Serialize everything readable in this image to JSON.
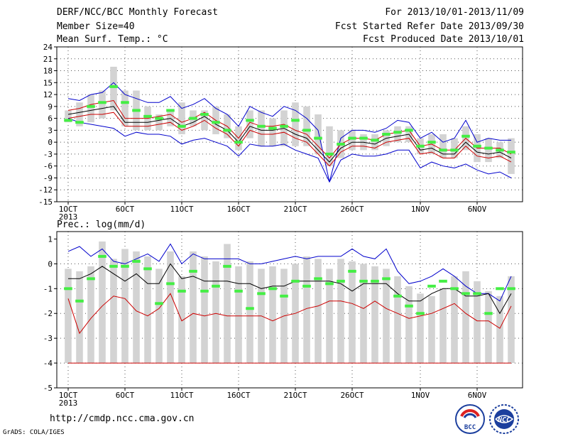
{
  "header": {
    "title": "DERF/NCC/BCC Monthly Forecast",
    "member_size": "Member Size=40",
    "temp_label": "Mean Surf. Temp.: °C",
    "for_period": "For 2013/10/01-2013/11/09",
    "fcst_started": "Fcst Started Refer Date 2013/09/30",
    "fcst_produced": "Fcst Produced Date 2013/10/01"
  },
  "footer": {
    "url": "http://cmdp.ncc.cma.gov.cn",
    "grads": "GrADS: COLA/IGES",
    "logo_bcc": "BCC",
    "logo_ncc": "NCC"
  },
  "colors": {
    "box": "#d3d3d3",
    "green": "#44ee44",
    "max": "#0000cc",
    "min": "#cc0000",
    "mean": "#000000",
    "grid": "#555555"
  },
  "chart_data": [
    {
      "type": "box-line",
      "title": "Mean Surf. Temp.: °C",
      "x_tick_labels": [
        "1OCT",
        "6OCT",
        "11OCT",
        "16OCT",
        "21OCT",
        "26OCT",
        "1NOV",
        "6NOV"
      ],
      "x_tick_days": [
        1,
        6,
        11,
        16,
        21,
        26,
        32,
        37
      ],
      "year_label": "2013",
      "ylim": [
        -15,
        24
      ],
      "y_ticks": [
        -15,
        -12,
        -9,
        -6,
        -3,
        0,
        3,
        6,
        9,
        12,
        15,
        18,
        21,
        24
      ],
      "y_tick_labels": [
        "-15",
        "-12",
        "-9",
        "-6",
        "-3",
        "0",
        "3",
        "6",
        "9",
        "12",
        "15",
        "18",
        "21",
        "24"
      ],
      "days": [
        1,
        2,
        3,
        4,
        5,
        6,
        7,
        8,
        9,
        10,
        11,
        12,
        13,
        14,
        15,
        16,
        17,
        18,
        19,
        20,
        21,
        22,
        23,
        24,
        25,
        26,
        27,
        28,
        29,
        30,
        31,
        32,
        33,
        34,
        35,
        36,
        37,
        38,
        39,
        40
      ],
      "box_low": [
        5,
        4,
        5,
        6,
        8,
        4,
        3,
        3,
        3,
        4,
        2,
        4,
        3,
        2,
        1,
        -2,
        1,
        -1,
        -1,
        -1,
        -1,
        -1,
        -3,
        -6,
        -4,
        -2,
        -2,
        -2,
        -1,
        0,
        0,
        -3,
        -3,
        -4,
        -4,
        -2,
        -5,
        -5,
        -4,
        -8
      ],
      "box_high": [
        8,
        10,
        12,
        13,
        19,
        13,
        13,
        9,
        7,
        8,
        10,
        8,
        8,
        9,
        7,
        4,
        8,
        8,
        6,
        8,
        10,
        9,
        7,
        4,
        3,
        3,
        2,
        2,
        3,
        4,
        4,
        1,
        2,
        2,
        1,
        4,
        2,
        1,
        0,
        1
      ],
      "green": [
        5.5,
        5,
        9,
        10,
        14,
        10,
        8,
        6.5,
        6,
        8,
        4,
        6,
        7,
        5,
        3,
        0,
        5.5,
        4,
        3.5,
        4,
        5.5,
        3,
        1,
        -3,
        -0.5,
        1,
        1,
        0.5,
        2,
        2.5,
        3,
        -1,
        0,
        -2,
        -2,
        1.5,
        -1,
        -1.5,
        -2,
        -2.5
      ],
      "series": [
        {
          "key": "max",
          "values": [
            11,
            10.5,
            12,
            12.5,
            15,
            12,
            11,
            10,
            10,
            11.5,
            8.5,
            9.5,
            11,
            8.5,
            7,
            4,
            9,
            7.5,
            6.5,
            9,
            8,
            6,
            3,
            -10,
            1,
            3,
            3,
            2.5,
            3.5,
            5.5,
            5,
            1,
            2.5,
            0,
            1,
            5.5,
            0,
            1,
            0.5,
            0.5
          ]
        },
        {
          "key": "upper",
          "values": [
            8,
            8.5,
            9.5,
            10,
            10.5,
            6,
            6,
            6,
            6.5,
            7,
            5,
            6,
            7.5,
            5.5,
            4,
            1,
            5,
            4,
            4,
            4.5,
            3,
            2,
            -1,
            -4,
            -0.5,
            1,
            1,
            0.5,
            2,
            2.5,
            3,
            -1,
            -0.5,
            -2,
            -2,
            1,
            -1.5,
            -1.5,
            -1.5,
            -3
          ]
        },
        {
          "key": "mean",
          "values": [
            7,
            7.5,
            8,
            8.5,
            9,
            5,
            5,
            5,
            5.5,
            6,
            4,
            5,
            6.5,
            4.5,
            3,
            0,
            4,
            3,
            3,
            3.5,
            2,
            1,
            -2,
            -5,
            -1.5,
            0,
            0,
            -0.5,
            1,
            1.5,
            2,
            -2,
            -1.5,
            -3,
            -3,
            0,
            -2.5,
            -3,
            -2.5,
            -4
          ]
        },
        {
          "key": "lower",
          "values": [
            6,
            6.5,
            7,
            7,
            7.5,
            4,
            4,
            4,
            4.5,
            5,
            3,
            4,
            5.5,
            3.5,
            2,
            -1,
            3,
            2,
            2,
            2.5,
            1,
            0,
            -3,
            -6,
            -2.5,
            -1,
            -1,
            -1.5,
            0,
            0.5,
            1,
            -3,
            -2.5,
            -4,
            -4,
            -1,
            -3.5,
            -4,
            -3.5,
            -5
          ]
        },
        {
          "key": "min",
          "values": [
            6,
            5,
            4.5,
            4,
            3.5,
            1.5,
            2.5,
            2,
            2,
            1.5,
            -0.5,
            0.5,
            1,
            0,
            -1,
            -3.5,
            -0.5,
            -1,
            -1,
            -0.5,
            -2,
            -3,
            -4,
            -10,
            -4.5,
            -3,
            -3.5,
            -3.5,
            -3,
            -2,
            -2,
            -6.5,
            -5,
            -6,
            -6.5,
            -5.5,
            -7,
            -8,
            -7.5,
            -9
          ]
        }
      ]
    },
    {
      "type": "box-line",
      "title": "Prec.: log(mm/d)",
      "x_tick_labels": [
        "1OCT",
        "6OCT",
        "11OCT",
        "16OCT",
        "21OCT",
        "26OCT",
        "1NOV",
        "6NOV"
      ],
      "x_tick_days": [
        1,
        6,
        11,
        16,
        21,
        26,
        32,
        37
      ],
      "year_label": "2013",
      "ylim": [
        -5,
        1.3
      ],
      "y_ticks": [
        -5,
        -4,
        -3,
        -2,
        -1,
        0,
        1
      ],
      "y_tick_labels": [
        "-5",
        "-4",
        "-3",
        "-2",
        "-1",
        "0",
        "1"
      ],
      "days": [
        1,
        2,
        3,
        4,
        5,
        6,
        7,
        8,
        9,
        10,
        11,
        12,
        13,
        14,
        15,
        16,
        17,
        18,
        19,
        20,
        21,
        22,
        23,
        24,
        25,
        26,
        27,
        28,
        29,
        30,
        31,
        32,
        33,
        34,
        35,
        36,
        37,
        38,
        39,
        40
      ],
      "box_low": [
        -4,
        -4,
        -4,
        -4,
        -4,
        -4,
        -4,
        -4,
        -4,
        -4,
        -4,
        -4,
        -4,
        -4,
        -4,
        -4,
        -4,
        -4,
        -4,
        -4,
        -4,
        -4,
        -4,
        -4,
        -4,
        -4,
        -4,
        -4,
        -4,
        -4,
        -4,
        -4,
        -4,
        -4,
        -4,
        -4,
        -4,
        -4,
        -4,
        -4
      ],
      "box_high": [
        -0.2,
        -0.3,
        -0.1,
        0.9,
        0.2,
        0.6,
        0.5,
        0.3,
        -0.2,
        0.5,
        -0.5,
        0.5,
        0.3,
        0.1,
        0.8,
        -0.1,
        0.1,
        -0.2,
        -0.1,
        -0.2,
        0.0,
        0.3,
        0.2,
        -0.2,
        0.2,
        0.1,
        0.0,
        -0.1,
        -0.2,
        -0.5,
        -0.9,
        -1.2,
        -1.3,
        -1.0,
        -0.5,
        -0.3,
        -0.7,
        -1.1,
        -1.3,
        -0.5
      ],
      "green": [
        -1.0,
        -1.5,
        -0.6,
        0.3,
        -0.1,
        -0.1,
        0.1,
        -0.2,
        -1.6,
        -0.8,
        -1.1,
        -0.3,
        -1.1,
        -0.9,
        -0.1,
        -1.1,
        -1.8,
        -1.2,
        -1.0,
        -1.3,
        -0.7,
        -0.9,
        -0.6,
        -0.8,
        -0.7,
        -0.3,
        -0.7,
        -0.7,
        -0.6,
        -1.3,
        -1.7,
        -2.0,
        -0.9,
        -0.7,
        -1.0,
        -1.2,
        -1.2,
        -2.0,
        -1.0,
        -1.0
      ],
      "series": [
        {
          "key": "max",
          "values": [
            0.5,
            0.7,
            0.3,
            0.6,
            0.1,
            0.0,
            0.2,
            0.4,
            0.1,
            0.8,
            0.0,
            0.4,
            0.2,
            0.2,
            0.2,
            0.2,
            0.0,
            0.0,
            0.1,
            0.2,
            0.3,
            0.2,
            0.3,
            0.3,
            0.3,
            0.6,
            0.3,
            0.2,
            0.6,
            -0.3,
            -0.8,
            -0.7,
            -0.5,
            -0.2,
            -0.5,
            -0.9,
            -1.2,
            -1.2,
            -1.5,
            -0.5
          ]
        },
        {
          "key": "mean",
          "values": [
            -0.6,
            -0.6,
            -0.4,
            -0.1,
            -0.4,
            -0.7,
            -0.4,
            -0.8,
            -0.8,
            0.0,
            -0.6,
            -0.5,
            -0.7,
            -0.7,
            -0.7,
            -0.8,
            -0.8,
            -1.0,
            -0.9,
            -0.9,
            -0.7,
            -0.7,
            -0.7,
            -0.7,
            -0.8,
            -1.1,
            -0.8,
            -0.8,
            -0.8,
            -1.2,
            -1.5,
            -1.5,
            -1.2,
            -1.0,
            -1.0,
            -1.3,
            -1.3,
            -1.2,
            -2.0,
            -1.2
          ]
        },
        {
          "key": "min",
          "values": [
            -1.4,
            -2.8,
            -2.2,
            -1.7,
            -1.3,
            -1.4,
            -1.9,
            -2.1,
            -1.8,
            -1.2,
            -2.3,
            -2.0,
            -2.1,
            -2.0,
            -2.1,
            -2.1,
            -2.1,
            -2.1,
            -2.3,
            -2.1,
            -2.0,
            -1.8,
            -1.7,
            -1.5,
            -1.5,
            -1.6,
            -1.8,
            -1.5,
            -1.8,
            -2.0,
            -2.2,
            -2.1,
            -2.0,
            -1.8,
            -1.6,
            -2.0,
            -2.3,
            -2.3,
            -2.6,
            -1.7
          ]
        },
        {
          "key": "floor",
          "values": [
            -4,
            -4,
            -4,
            -4,
            -4,
            -4,
            -4,
            -4,
            -4,
            -4,
            -4,
            -4,
            -4,
            -4,
            -4,
            -4,
            -4,
            -4,
            -4,
            -4,
            -4,
            -4,
            -4,
            -4,
            -4,
            -4,
            -4,
            -4,
            -4,
            -4,
            -4,
            -4,
            -4,
            -4,
            -4,
            -4,
            -4,
            -4,
            -4,
            -4
          ]
        }
      ]
    }
  ]
}
